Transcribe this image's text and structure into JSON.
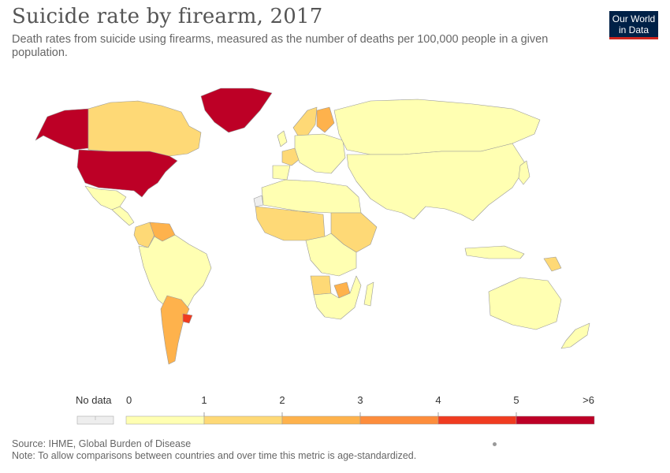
{
  "header": {
    "title": "Suicide rate by firearm, 2017",
    "subtitle": "Death rates from suicide using firearms, measured as the number of deaths per 100,000 people in a given population."
  },
  "logo": {
    "line1": "Our World",
    "line2": "in Data",
    "bg": "#002147",
    "accent": "#ce261e"
  },
  "legend": {
    "no_data_label": "No data",
    "no_data_color": "#eeeeee",
    "bins": [
      {
        "from": "0",
        "to": "1",
        "color": "#ffffb2"
      },
      {
        "from": "1",
        "to": "2",
        "color": "#fed976"
      },
      {
        "from": "2",
        "to": "3",
        "color": "#feb24c"
      },
      {
        "from": "3",
        "to": "4",
        "color": "#fd8d3c"
      },
      {
        "from": "4",
        "to": "5",
        "color": "#f03b20"
      },
      {
        "from": "5",
        "to": ">6",
        "color": "#bd0026"
      }
    ],
    "ticks": [
      "0",
      "1",
      "2",
      "3",
      "4",
      "5",
      ">6"
    ]
  },
  "map": {
    "regions": [
      {
        "name": "alaska",
        "bin": 5
      },
      {
        "name": "greenland",
        "bin": 5
      },
      {
        "name": "canada",
        "bin": 1
      },
      {
        "name": "usa",
        "bin": 5
      },
      {
        "name": "mexico",
        "bin": 0
      },
      {
        "name": "central-america",
        "bin": 0
      },
      {
        "name": "venezuela",
        "bin": 2
      },
      {
        "name": "colombia",
        "bin": 1
      },
      {
        "name": "south-america",
        "bin": 0
      },
      {
        "name": "argentina",
        "bin": 2
      },
      {
        "name": "uruguay",
        "bin": 4
      },
      {
        "name": "europe",
        "bin": 0
      },
      {
        "name": "finland",
        "bin": 2
      },
      {
        "name": "norway-sweden",
        "bin": 1
      },
      {
        "name": "france",
        "bin": 1
      },
      {
        "name": "iberia",
        "bin": 0
      },
      {
        "name": "uk",
        "bin": 0
      },
      {
        "name": "russia",
        "bin": 0
      },
      {
        "name": "asia",
        "bin": 0
      },
      {
        "name": "north-africa",
        "bin": 0
      },
      {
        "name": "west-africa",
        "bin": 1
      },
      {
        "name": "central-africa",
        "bin": 0
      },
      {
        "name": "east-africa",
        "bin": 1
      },
      {
        "name": "southern-africa",
        "bin": 0
      },
      {
        "name": "zimbabwe",
        "bin": 2
      },
      {
        "name": "angola",
        "bin": 1
      },
      {
        "name": "madagascar",
        "bin": 0
      },
      {
        "name": "australia",
        "bin": 0
      },
      {
        "name": "new-zealand",
        "bin": 0
      },
      {
        "name": "papua-new-guinea",
        "bin": 1
      },
      {
        "name": "indonesia",
        "bin": 0
      },
      {
        "name": "japan",
        "bin": 0
      },
      {
        "name": "western-sahara",
        "bin": -1
      }
    ]
  },
  "footer": {
    "source": "Source: IHME, Global Burden of Disease",
    "note": "Note: To allow comparisons between countries and over time this metric is age-standardized."
  }
}
